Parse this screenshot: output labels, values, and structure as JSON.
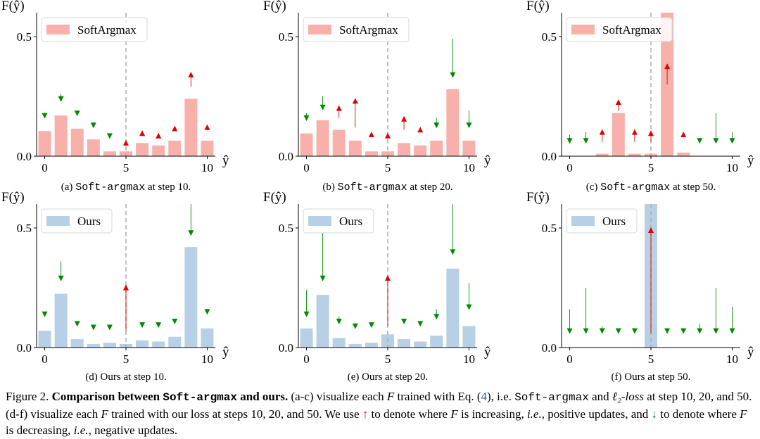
{
  "chart_data": [
    {
      "type": "bar",
      "legend": "SoftArgmax",
      "color": "#f7b1aa",
      "ylabel": "F(ŷ)",
      "xlabel": "ŷ",
      "xticks": [
        "0",
        "5",
        "10"
      ],
      "yticks": [
        "0.0",
        "0.5"
      ],
      "ylim": [
        0,
        0.6
      ],
      "legend_position": "top-left",
      "dashed_line_x": 5,
      "subcaption": {
        "prefix": "(a) ",
        "code": "Soft-argmax",
        "suffix": " at step 10."
      },
      "categories": [
        0,
        1,
        2,
        3,
        4,
        5,
        6,
        7,
        8,
        9,
        10
      ],
      "values": [
        0.105,
        0.17,
        0.115,
        0.07,
        0.02,
        0.02,
        0.055,
        0.045,
        0.065,
        0.24,
        0.065
      ],
      "updates": [
        {
          "x": 0,
          "from": 0.18,
          "to": 0.16,
          "dir": "down"
        },
        {
          "x": 1,
          "from": 0.26,
          "to": 0.23,
          "dir": "down"
        },
        {
          "x": 2,
          "from": 0.18,
          "to": 0.17,
          "dir": "down"
        },
        {
          "x": 3,
          "from": 0.14,
          "to": 0.12,
          "dir": "down"
        },
        {
          "x": 4,
          "from": 0.09,
          "to": 0.075,
          "dir": "down"
        },
        {
          "x": 5,
          "from": 0.05,
          "to": 0.065,
          "dir": "up"
        },
        {
          "x": 6,
          "from": 0.09,
          "to": 0.105,
          "dir": "up"
        },
        {
          "x": 7,
          "from": 0.085,
          "to": 0.095,
          "dir": "up"
        },
        {
          "x": 8,
          "from": 0.11,
          "to": 0.125,
          "dir": "up"
        },
        {
          "x": 9,
          "from": 0.29,
          "to": 0.35,
          "dir": "up"
        },
        {
          "x": 10,
          "from": 0.12,
          "to": 0.13,
          "dir": "up"
        }
      ]
    },
    {
      "type": "bar",
      "legend": "SoftArgmax",
      "color": "#f7b1aa",
      "ylabel": "F(ŷ)",
      "xlabel": "ŷ",
      "xticks": [
        "0",
        "5",
        "10"
      ],
      "yticks": [
        "0.0",
        "0.5"
      ],
      "ylim": [
        0,
        0.6
      ],
      "legend_position": "top-left",
      "dashed_line_x": 5,
      "subcaption": {
        "prefix": "(b) ",
        "code": "Soft-argmax",
        "suffix": " at step 20."
      },
      "categories": [
        0,
        1,
        2,
        3,
        4,
        5,
        6,
        7,
        8,
        9,
        10
      ],
      "values": [
        0.095,
        0.15,
        0.11,
        0.065,
        0.02,
        0.02,
        0.055,
        0.045,
        0.065,
        0.28,
        0.065
      ],
      "updates": [
        {
          "x": 0,
          "from": 0.18,
          "to": 0.15,
          "dir": "down"
        },
        {
          "x": 1,
          "from": 0.25,
          "to": 0.195,
          "dir": "down"
        },
        {
          "x": 2,
          "from": 0.16,
          "to": 0.21,
          "dir": "up"
        },
        {
          "x": 3,
          "from": 0.12,
          "to": 0.24,
          "dir": "up"
        },
        {
          "x": 4,
          "from": 0.085,
          "to": 0.1,
          "dir": "up"
        },
        {
          "x": 5,
          "from": 0.075,
          "to": 0.095,
          "dir": "up"
        },
        {
          "x": 6,
          "from": 0.11,
          "to": 0.165,
          "dir": "up"
        },
        {
          "x": 7,
          "from": 0.1,
          "to": 0.12,
          "dir": "up"
        },
        {
          "x": 8,
          "from": 0.16,
          "to": 0.12,
          "dir": "down"
        },
        {
          "x": 9,
          "from": 0.49,
          "to": 0.33,
          "dir": "down"
        },
        {
          "x": 10,
          "from": 0.19,
          "to": 0.12,
          "dir": "down"
        }
      ]
    },
    {
      "type": "bar",
      "legend": "SoftArgmax",
      "color": "#f7b1aa",
      "ylabel": "F(ŷ)",
      "xlabel": "ŷ",
      "xticks": [
        "0",
        "5",
        "10"
      ],
      "yticks": [
        "0.0",
        "0.5"
      ],
      "ylim": [
        0,
        0.6
      ],
      "legend_position": "top-left",
      "dashed_line_x": 5,
      "subcaption": {
        "prefix": "(c) ",
        "code": "Soft-argmax",
        "suffix": " at step 50."
      },
      "categories": [
        0,
        1,
        2,
        3,
        4,
        5,
        6,
        7,
        8,
        9,
        10
      ],
      "values": [
        0.0,
        0.0,
        0.01,
        0.18,
        0.01,
        0.01,
        0.6,
        0.015,
        0.0,
        0.0,
        0.0
      ],
      "updates": [
        {
          "x": 0,
          "from": 0.09,
          "to": 0.055,
          "dir": "down"
        },
        {
          "x": 1,
          "from": 0.1,
          "to": 0.055,
          "dir": "down"
        },
        {
          "x": 2,
          "from": 0.06,
          "to": 0.11,
          "dir": "up"
        },
        {
          "x": 3,
          "from": 0.19,
          "to": 0.235,
          "dir": "up"
        },
        {
          "x": 4,
          "from": 0.06,
          "to": 0.11,
          "dir": "up"
        },
        {
          "x": 5,
          "from": 0.06,
          "to": 0.105,
          "dir": "up"
        },
        {
          "x": 6,
          "from": 0.3,
          "to": 0.385,
          "dir": "up"
        },
        {
          "x": 7,
          "from": 0.08,
          "to": 0.1,
          "dir": "up"
        },
        {
          "x": 8,
          "from": 0.07,
          "to": 0.055,
          "dir": "down"
        },
        {
          "x": 9,
          "from": 0.18,
          "to": 0.055,
          "dir": "down"
        },
        {
          "x": 10,
          "from": 0.1,
          "to": 0.055,
          "dir": "down"
        }
      ]
    },
    {
      "type": "bar",
      "legend": "Ours",
      "color": "#b7d0e6",
      "ylabel": "F(ŷ)",
      "xlabel": "ŷ",
      "xticks": [
        "0",
        "5",
        "10"
      ],
      "yticks": [
        "0.0",
        "0.5"
      ],
      "ylim": [
        0,
        0.6
      ],
      "legend_position": "top-left",
      "dashed_line_x": 5,
      "subcaption": {
        "prefix": "(d) Ours at step 10.",
        "code": "",
        "suffix": ""
      },
      "categories": [
        0,
        1,
        2,
        3,
        4,
        5,
        6,
        7,
        8,
        9,
        10
      ],
      "values": [
        0.07,
        0.225,
        0.035,
        0.015,
        0.02,
        0.015,
        0.03,
        0.025,
        0.045,
        0.42,
        0.08
      ],
      "updates": [
        {
          "x": 0,
          "from": 0.15,
          "to": 0.13,
          "dir": "down"
        },
        {
          "x": 1,
          "from": 0.36,
          "to": 0.28,
          "dir": "down"
        },
        {
          "x": 2,
          "from": 0.11,
          "to": 0.09,
          "dir": "down"
        },
        {
          "x": 3,
          "from": 0.09,
          "to": 0.075,
          "dir": "down"
        },
        {
          "x": 4,
          "from": 0.09,
          "to": 0.075,
          "dir": "down"
        },
        {
          "x": 5,
          "from": 0.07,
          "to": 0.26,
          "dir": "up"
        },
        {
          "x": 6,
          "from": 0.1,
          "to": 0.085,
          "dir": "down"
        },
        {
          "x": 7,
          "from": 0.1,
          "to": 0.085,
          "dir": "down"
        },
        {
          "x": 8,
          "from": 0.12,
          "to": 0.1,
          "dir": "down"
        },
        {
          "x": 9,
          "from": 0.6,
          "to": 0.47,
          "dir": "down"
        },
        {
          "x": 10,
          "from": 0.16,
          "to": 0.14,
          "dir": "down"
        }
      ]
    },
    {
      "type": "bar",
      "legend": "Ours",
      "color": "#b7d0e6",
      "ylabel": "F(ŷ)",
      "xlabel": "ŷ",
      "xticks": [
        "0",
        "5",
        "10"
      ],
      "yticks": [
        "0.0",
        "0.5"
      ],
      "ylim": [
        0,
        0.6
      ],
      "legend_position": "top-left",
      "dashed_line_x": 5,
      "subcaption": {
        "prefix": "(e) Ours at step 20.",
        "code": "",
        "suffix": ""
      },
      "categories": [
        0,
        1,
        2,
        3,
        4,
        5,
        6,
        7,
        8,
        9,
        10
      ],
      "values": [
        0.08,
        0.22,
        0.04,
        0.015,
        0.02,
        0.055,
        0.035,
        0.025,
        0.05,
        0.33,
        0.09
      ],
      "updates": [
        {
          "x": 0,
          "from": 0.24,
          "to": 0.13,
          "dir": "down"
        },
        {
          "x": 1,
          "from": 0.48,
          "to": 0.28,
          "dir": "down"
        },
        {
          "x": 2,
          "from": 0.13,
          "to": 0.1,
          "dir": "down"
        },
        {
          "x": 3,
          "from": 0.1,
          "to": 0.08,
          "dir": "down"
        },
        {
          "x": 4,
          "from": 0.1,
          "to": 0.085,
          "dir": "down"
        },
        {
          "x": 5,
          "from": 0.09,
          "to": 0.3,
          "dir": "up"
        },
        {
          "x": 6,
          "from": 0.12,
          "to": 0.1,
          "dir": "down"
        },
        {
          "x": 7,
          "from": 0.11,
          "to": 0.09,
          "dir": "down"
        },
        {
          "x": 8,
          "from": 0.16,
          "to": 0.12,
          "dir": "down"
        },
        {
          "x": 9,
          "from": 0.6,
          "to": 0.39,
          "dir": "down"
        },
        {
          "x": 10,
          "from": 0.27,
          "to": 0.16,
          "dir": "down"
        }
      ]
    },
    {
      "type": "bar",
      "legend": "Ours",
      "color": "#b7d0e6",
      "ylabel": "F(ŷ)",
      "xlabel": "ŷ",
      "xticks": [
        "0",
        "5",
        "10"
      ],
      "yticks": [
        "0.0",
        "0.5"
      ],
      "ylim": [
        0,
        0.6
      ],
      "legend_position": "top-left",
      "dashed_line_x": 5,
      "subcaption": {
        "prefix": "(f) Ours at step 50.",
        "code": "",
        "suffix": ""
      },
      "categories": [
        0,
        1,
        2,
        3,
        4,
        5,
        6,
        7,
        8,
        9,
        10
      ],
      "values": [
        0,
        0,
        0,
        0,
        0,
        0.6,
        0,
        0,
        0,
        0,
        0
      ],
      "updates": [
        {
          "x": 0,
          "from": 0.16,
          "to": 0.06,
          "dir": "down"
        },
        {
          "x": 1,
          "from": 0.25,
          "to": 0.06,
          "dir": "down"
        },
        {
          "x": 2,
          "from": 0.09,
          "to": 0.06,
          "dir": "down"
        },
        {
          "x": 3,
          "from": 0.07,
          "to": 0.06,
          "dir": "down"
        },
        {
          "x": 4,
          "from": 0.07,
          "to": 0.06,
          "dir": "down"
        },
        {
          "x": 5,
          "from": 0.06,
          "to": 0.5,
          "dir": "up"
        },
        {
          "x": 6,
          "from": 0.07,
          "to": 0.06,
          "dir": "down"
        },
        {
          "x": 7,
          "from": 0.07,
          "to": 0.06,
          "dir": "down"
        },
        {
          "x": 8,
          "from": 0.1,
          "to": 0.06,
          "dir": "down"
        },
        {
          "x": 9,
          "from": 0.25,
          "to": 0.06,
          "dir": "down"
        },
        {
          "x": 10,
          "from": 0.17,
          "to": 0.06,
          "dir": "down"
        }
      ]
    }
  ],
  "colors": {
    "up_arrow": "#e00000",
    "down_arrow": "#008a00",
    "dashed_line": "#b0b0b0",
    "ref_link": "#2a5db0"
  },
  "caption": {
    "figure_label": "Figure 2.",
    "bold_1": "Comparison between",
    "bold_code": "Soft-argmax",
    "bold_2": "and ours.",
    "text_1": "(a-c) visualize each",
    "F": "F",
    "text_2": "trained with Eq. (",
    "eq_ref": "4",
    "text_3": "), i.e.",
    "code_2": "Soft-argmax",
    "text_4": "and",
    "loss": "ℓ₂-loss",
    "text_5": "at step 10, 20, and 50. (d-f) visualize each",
    "text_6": "trained with our loss at steps 10, 20, and 50. We use",
    "up_symbol": "↑",
    "text_7": "to denote where",
    "text_8": "is increasing,",
    "ie_1": "i.e.",
    "text_9": ", positive updates, and",
    "down_symbol": "↓",
    "text_10": "to denote where",
    "text_11": "is decreasing,",
    "ie_2": "i.e.",
    "text_12": ", negative updates."
  }
}
